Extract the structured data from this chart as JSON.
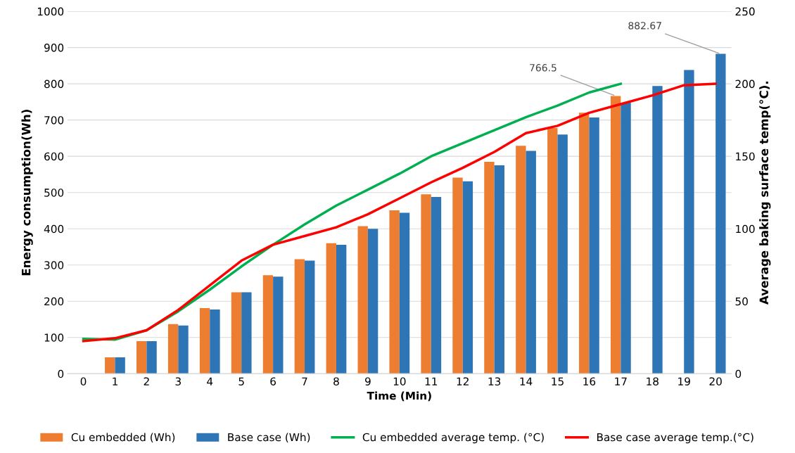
{
  "chart_data": {
    "type": "bar",
    "xlabel": "Time (Min)",
    "ylabel": "Energy consumption(Wh)",
    "y2label": "Average baking surface temp(°C).",
    "categories": [
      "0",
      "1",
      "2",
      "3",
      "4",
      "5",
      "6",
      "7",
      "8",
      "9",
      "10",
      "11",
      "12",
      "13",
      "14",
      "15",
      "16",
      "17",
      "18",
      "19",
      "20"
    ],
    "series": [
      {
        "name": "Cu embedded (Wh)",
        "color": "#ed7d31",
        "values": [
          null,
          45,
          90,
          137,
          181,
          225,
          272,
          316,
          360,
          407,
          451,
          495,
          541,
          585,
          629,
          678,
          720,
          766.5,
          null,
          null,
          null
        ],
        "value_labels": [
          null,
          null,
          null,
          null,
          null,
          null,
          null,
          null,
          null,
          null,
          null,
          null,
          null,
          null,
          null,
          null,
          null,
          "766.5",
          null,
          null,
          null
        ]
      },
      {
        "name": "Base case (Wh)",
        "color": "#2e75b6",
        "values": [
          null,
          45,
          90,
          133,
          177,
          225,
          268,
          312,
          356,
          400,
          444,
          488,
          531,
          575,
          615,
          660,
          707,
          748,
          794,
          838,
          882.67
        ],
        "value_labels": [
          null,
          null,
          null,
          null,
          null,
          null,
          null,
          null,
          null,
          null,
          null,
          null,
          null,
          null,
          null,
          null,
          null,
          null,
          null,
          null,
          "882.67"
        ]
      },
      {
        "name": "Cu embedded average temp. (°C)",
        "color": "#00b050",
        "type": "line",
        "axis": "y2",
        "values": [
          24,
          23.5,
          30,
          43,
          58,
          74,
          89,
          103,
          116,
          127,
          138,
          150,
          159,
          168,
          177,
          185,
          194,
          200,
          null,
          null,
          null
        ]
      },
      {
        "name": "Base case average temp.(°C)",
        "color": "#ff0000",
        "type": "line",
        "axis": "y2",
        "values": [
          22.5,
          24.5,
          30,
          44,
          61,
          78,
          89,
          95,
          101,
          110,
          121,
          132,
          142,
          153,
          166,
          171,
          180,
          186,
          192,
          199,
          200
        ]
      }
    ],
    "ylim": [
      0,
      1000
    ],
    "yticks": [
      0,
      100,
      200,
      300,
      400,
      500,
      600,
      700,
      800,
      900,
      1000
    ],
    "y2lim": [
      0,
      250
    ],
    "y2ticks": [
      0,
      50,
      100,
      150,
      200,
      250
    ],
    "grid": "y",
    "legend": "bottom",
    "marker": "none",
    "line_style": "solid"
  }
}
